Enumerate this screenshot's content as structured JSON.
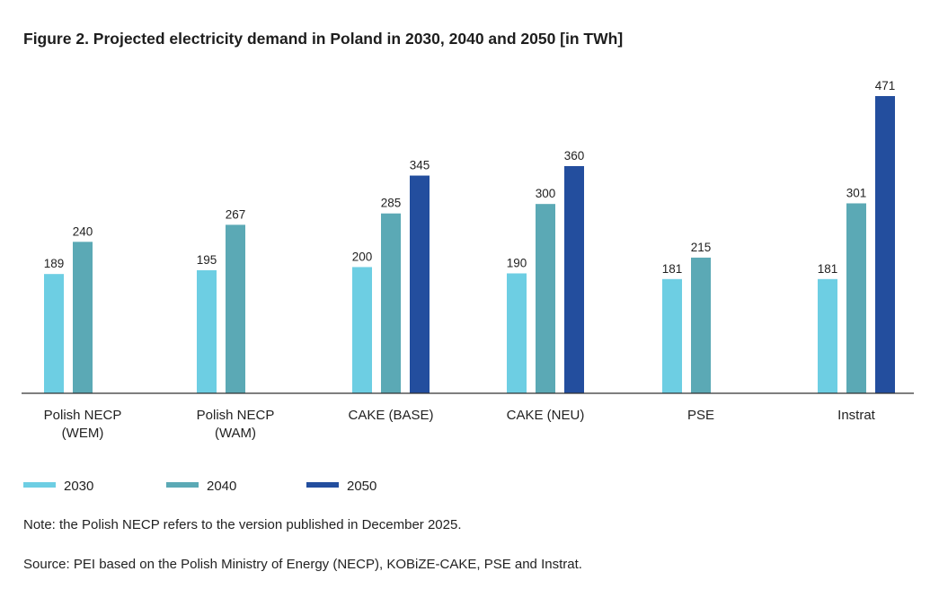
{
  "chart_data": {
    "type": "bar",
    "title": "Figure 2. Projected electricity demand in Poland in 2030, 2040 and 2050 [in TWh]",
    "categories": [
      [
        "Polish NECP",
        "(WEM)"
      ],
      [
        "Polish NECP",
        "(WAM)"
      ],
      [
        "CAKE (BASE)"
      ],
      [
        "CAKE (NEU)"
      ],
      [
        "PSE"
      ],
      [
        "Instrat"
      ]
    ],
    "series": [
      {
        "name": "2030",
        "color": "#6dcee3",
        "values": [
          189,
          195,
          200,
          190,
          181,
          181
        ]
      },
      {
        "name": "2040",
        "color": "#5ba9b5",
        "values": [
          240,
          267,
          285,
          300,
          215,
          301
        ]
      },
      {
        "name": "2050",
        "color": "#234e9e",
        "values": [
          null,
          null,
          345,
          360,
          null,
          471
        ]
      }
    ],
    "ylim": [
      0,
      471
    ],
    "grid": false,
    "legend": "bottom-left"
  },
  "notes": {
    "note": "Note: the Polish NECP refers to the version published in December 2025.",
    "source": "Source: PEI based on the Polish Ministry of Energy (NECP), KOBiZE-CAKE, PSE and Instrat."
  }
}
